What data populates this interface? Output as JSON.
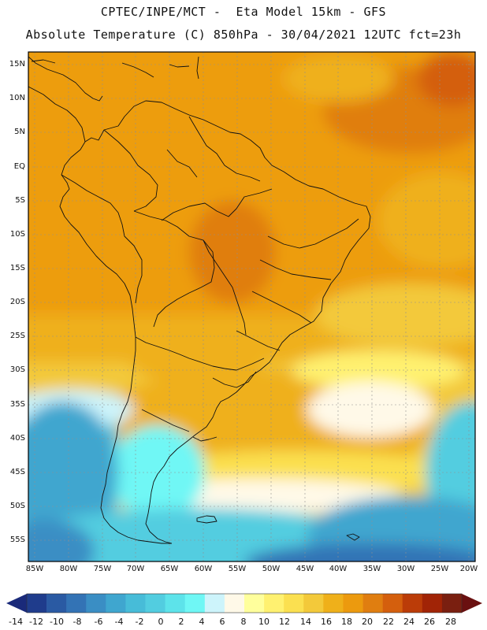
{
  "header": {
    "line1": "CPTEC/INPE/MCT -  Eta Model 15km - GFS",
    "line2": "Absolute Temperature (C) 850hPa - 30/04/2021 12UTC fct=23h"
  },
  "map": {
    "lat_labels": [
      "15N",
      "10N",
      "5N",
      "EQ",
      "5S",
      "10S",
      "15S",
      "20S",
      "25S",
      "30S",
      "35S",
      "40S",
      "45S",
      "50S",
      "55S"
    ],
    "lon_labels": [
      "85W",
      "80W",
      "75W",
      "70W",
      "65W",
      "60W",
      "55W",
      "50W",
      "45W",
      "40W",
      "35W",
      "30W",
      "25W",
      "20W"
    ]
  },
  "colorbar": {
    "labels": [
      "-14",
      "-12",
      "-10",
      "-8",
      "-6",
      "-4",
      "-2",
      "0",
      "2",
      "4",
      "6",
      "8",
      "10",
      "12",
      "14",
      "16",
      "18",
      "20",
      "22",
      "24",
      "26",
      "28"
    ],
    "colors": [
      "#1f3c8c",
      "#2a5aa3",
      "#3373b5",
      "#3a8ec4",
      "#3fa6cf",
      "#47bcd8",
      "#52cde0",
      "#5de3ea",
      "#6ff7f5",
      "#cdf4fb",
      "#fff9e8",
      "#ffff9c",
      "#fff170",
      "#fbe050",
      "#f3c93a",
      "#efb01a",
      "#ec9a0e",
      "#e07e10",
      "#d45f0d",
      "#bb3c08",
      "#a12406",
      "#7a1f10"
    ]
  }
}
